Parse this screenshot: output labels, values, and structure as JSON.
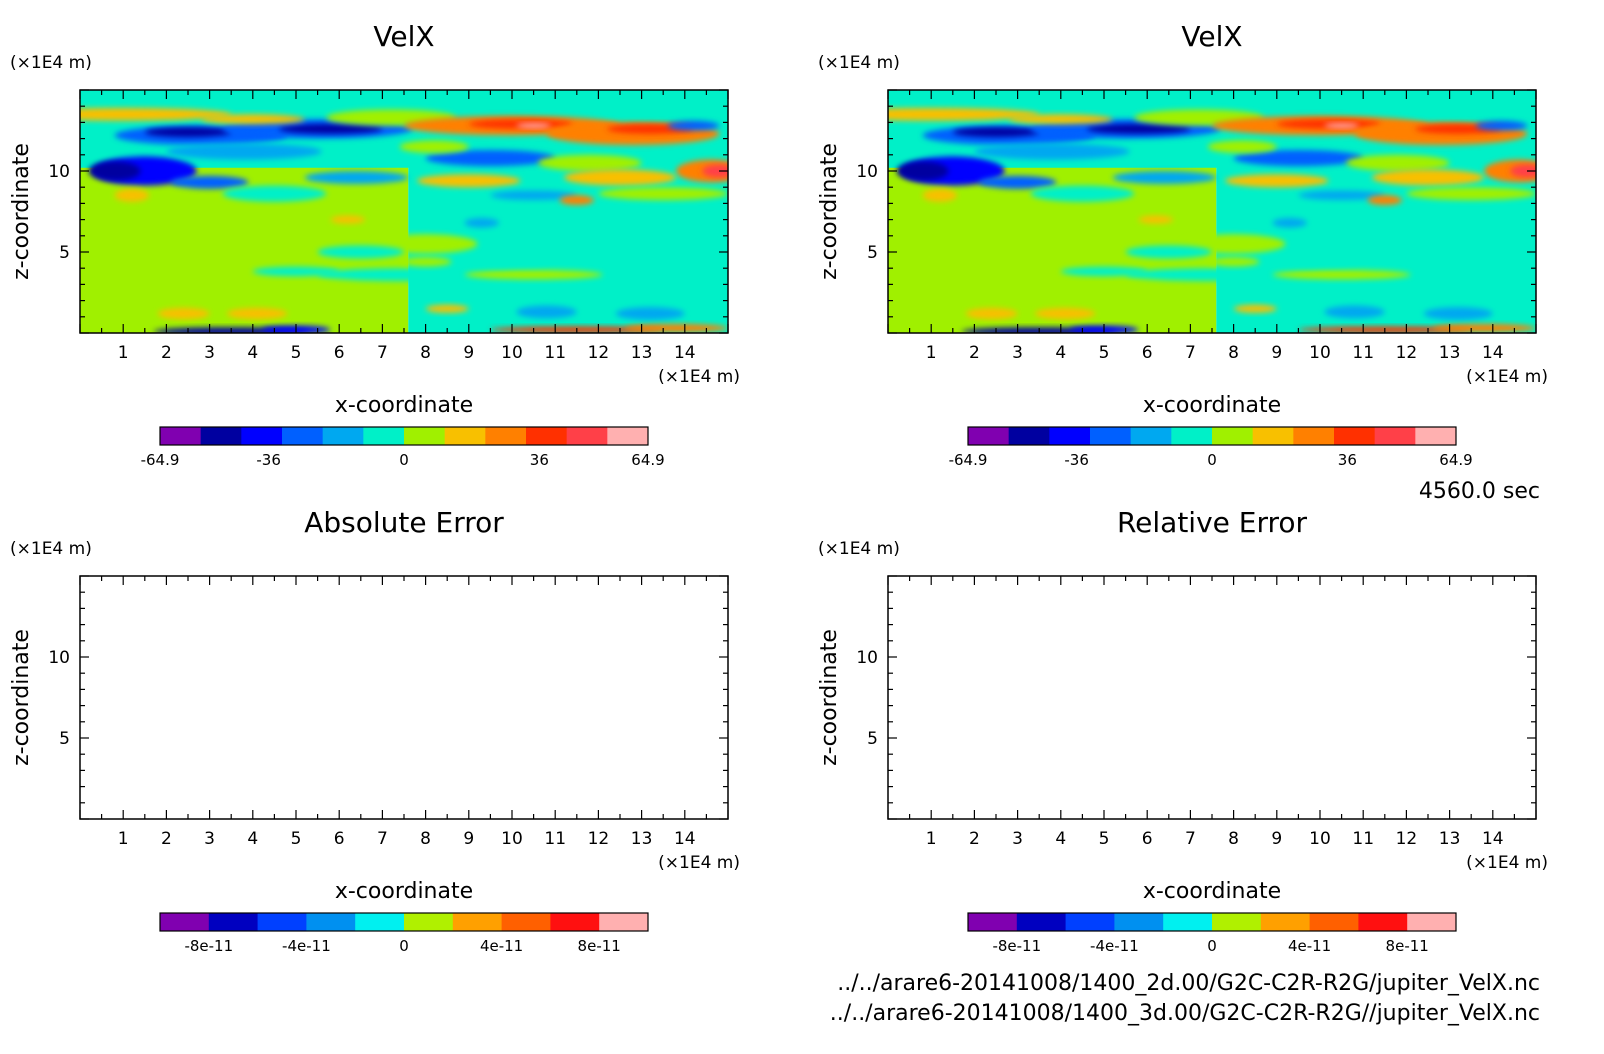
{
  "time_label": "4560.0 sec",
  "file_paths": [
    "../../arare6-20141008/1400_2d.00/G2C-C2R-R2G/jupiter_VelX.nc",
    "../../arare6-20141008/1400_3d.00/G2C-C2R-R2G//jupiter_VelX.nc"
  ],
  "chart_data": [
    {
      "type": "heatmap",
      "title": "VelX",
      "xlabel": "x-coordinate",
      "ylabel": "z-coordinate",
      "x_unit": "(×1E4 m)",
      "y_unit": "(×1E4 m)",
      "xlim": [
        0,
        15
      ],
      "ylim": [
        0,
        15
      ],
      "x_ticks": [
        "1",
        "2",
        "3",
        "4",
        "5",
        "6",
        "7",
        "8",
        "9",
        "10",
        "11",
        "12",
        "13",
        "14"
      ],
      "y_ticks": [
        "5",
        "10"
      ],
      "filled": true,
      "colorbar": {
        "min": -64.9,
        "max": 64.9,
        "labels": [
          "-64.9",
          "-36",
          "0",
          "36",
          "64.9"
        ],
        "label_values": [
          -64.9,
          -36,
          0,
          36,
          64.9
        ],
        "colors": [
          "#8000b0",
          "#0000a0",
          "#0000ff",
          "#0060ff",
          "#00a8f0",
          "#00f0c8",
          "#a0f000",
          "#f8c000",
          "#ff8000",
          "#ff3000",
          "#ff4048",
          "#ffb0b0"
        ]
      }
    },
    {
      "type": "heatmap",
      "title": "VelX",
      "xlabel": "x-coordinate",
      "ylabel": "z-coordinate",
      "x_unit": "(×1E4 m)",
      "y_unit": "(×1E4 m)",
      "xlim": [
        0,
        15
      ],
      "ylim": [
        0,
        15
      ],
      "x_ticks": [
        "1",
        "2",
        "3",
        "4",
        "5",
        "6",
        "7",
        "8",
        "9",
        "10",
        "11",
        "12",
        "13",
        "14"
      ],
      "y_ticks": [
        "5",
        "10"
      ],
      "filled": true,
      "colorbar": {
        "min": -64.9,
        "max": 64.9,
        "labels": [
          "-64.9",
          "-36",
          "0",
          "36",
          "64.9"
        ],
        "label_values": [
          -64.9,
          -36,
          0,
          36,
          64.9
        ],
        "colors": [
          "#8000b0",
          "#0000a0",
          "#0000ff",
          "#0060ff",
          "#00a8f0",
          "#00f0c8",
          "#a0f000",
          "#f8c000",
          "#ff8000",
          "#ff3000",
          "#ff4048",
          "#ffb0b0"
        ]
      }
    },
    {
      "type": "heatmap",
      "title": "Absolute Error",
      "xlabel": "x-coordinate",
      "ylabel": "z-coordinate",
      "x_unit": "(×1E4 m)",
      "y_unit": "(×1E4 m)",
      "xlim": [
        0,
        15
      ],
      "ylim": [
        0,
        15
      ],
      "x_ticks": [
        "1",
        "2",
        "3",
        "4",
        "5",
        "6",
        "7",
        "8",
        "9",
        "10",
        "11",
        "12",
        "13",
        "14"
      ],
      "y_ticks": [
        "5",
        "10"
      ],
      "filled": false,
      "colorbar": {
        "min": -1e-10,
        "max": 1e-10,
        "labels": [
          "-8e-11",
          "-4e-11",
          "0",
          "4e-11",
          "8e-11"
        ],
        "label_values": [
          -8e-11,
          -4e-11,
          0,
          4e-11,
          8e-11
        ],
        "colors": [
          "#8000b0",
          "#0000c0",
          "#0040ff",
          "#0090f0",
          "#00f0f0",
          "#b0f000",
          "#ffa000",
          "#ff6000",
          "#ff1010",
          "#ffb0b0"
        ]
      }
    },
    {
      "type": "heatmap",
      "title": "Relative Error",
      "xlabel": "x-coordinate",
      "ylabel": "z-coordinate",
      "x_unit": "(×1E4 m)",
      "y_unit": "(×1E4 m)",
      "xlim": [
        0,
        15
      ],
      "ylim": [
        0,
        15
      ],
      "x_ticks": [
        "1",
        "2",
        "3",
        "4",
        "5",
        "6",
        "7",
        "8",
        "9",
        "10",
        "11",
        "12",
        "13",
        "14"
      ],
      "y_ticks": [
        "5",
        "10"
      ],
      "filled": false,
      "colorbar": {
        "min": -1e-10,
        "max": 1e-10,
        "labels": [
          "-8e-11",
          "-4e-11",
          "0",
          "4e-11",
          "8e-11"
        ],
        "label_values": [
          -8e-11,
          -4e-11,
          0,
          4e-11,
          8e-11
        ],
        "colors": [
          "#8000b0",
          "#0000c0",
          "#0040ff",
          "#0090f0",
          "#00f0f0",
          "#b0f000",
          "#ffa000",
          "#ff6000",
          "#ff1010",
          "#ffb0b0"
        ]
      }
    }
  ]
}
